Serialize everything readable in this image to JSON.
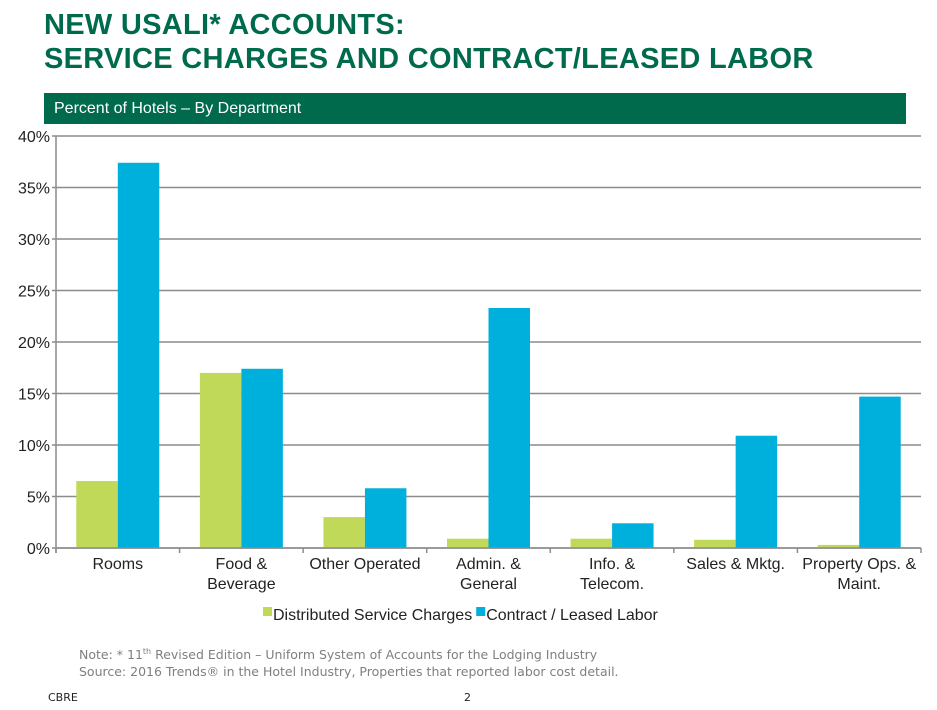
{
  "header": {
    "title_line1": "NEW USALI* ACCOUNTS:",
    "title_line2": "SERVICE CHARGES AND CONTRACT/LEASED LABOR",
    "banner": "Percent of Hotels – By Department"
  },
  "chart_data": {
    "type": "bar",
    "title": "Percent of Hotels – By Department",
    "categories": [
      [
        "Rooms"
      ],
      [
        "Food &",
        "Beverage"
      ],
      [
        "Other Operated"
      ],
      [
        "Admin. &",
        "General"
      ],
      [
        "Info. &",
        "Telecom."
      ],
      [
        "Sales & Mktg."
      ],
      [
        "Property Ops. &",
        "Maint."
      ]
    ],
    "series": [
      {
        "name": "Distributed Service Charges",
        "color": "#c0d959",
        "values": [
          6.5,
          17.0,
          3.0,
          0.9,
          0.9,
          0.8,
          0.3
        ]
      },
      {
        "name": "Contract / Leased Labor",
        "color": "#00b0dc",
        "values": [
          37.4,
          17.4,
          5.8,
          23.3,
          2.4,
          10.9,
          14.7
        ]
      }
    ],
    "ylim": [
      0,
      40
    ],
    "yticks": [
      "0%",
      "5%",
      "10%",
      "15%",
      "20%",
      "25%",
      "30%",
      "35%",
      "40%"
    ],
    "grid": true,
    "legend": "bottom"
  },
  "footer": {
    "note_prefix": "Note: * 11",
    "note_sup": "th",
    "note_rest": " Revised Edition – Uniform System of Accounts for the Lodging Industry",
    "source": "Source: 2016 Trends® in the Hotel Industry, Properties that reported labor cost detail.",
    "brand": "CBRE",
    "page": "2"
  }
}
